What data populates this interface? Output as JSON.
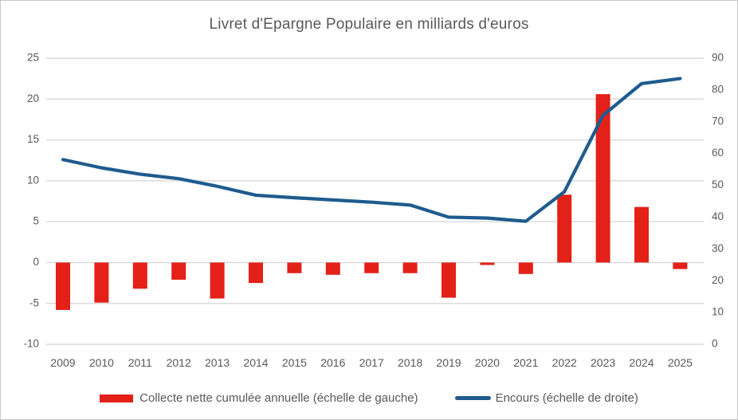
{
  "title": "Livret d'Epargne Populaire en milliards d'euros",
  "colors": {
    "bar_red": "#E32119",
    "line_blue": "#1F5B8E",
    "gridline": "#D9D9D9",
    "text_gray": "#595959"
  },
  "chart_data": {
    "type": "combo",
    "title": "Livret d'Epargne Populaire en milliards d'euros",
    "categories": [
      "2009",
      "2010",
      "2011",
      "2012",
      "2013",
      "2014",
      "2015",
      "2016",
      "2017",
      "2018",
      "2019",
      "2020",
      "2021",
      "2022",
      "2023",
      "2024",
      "2025"
    ],
    "series": [
      {
        "name": "Collecte nette cumulée annuelle (échelle de gauche)",
        "type": "bar",
        "axis": "left",
        "color": "#E32119",
        "values": [
          -5.8,
          -4.9,
          -3.2,
          -2.1,
          -4.4,
          -2.5,
          -1.3,
          -1.5,
          -1.3,
          -1.3,
          -4.3,
          -0.3,
          -1.4,
          8.3,
          20.6,
          6.8,
          -0.8
        ]
      },
      {
        "name": "Encours (échelle de droite)",
        "type": "line",
        "axis": "right",
        "color": "#1F5B8E",
        "values": [
          58.1,
          55.5,
          53.5,
          52.1,
          49.7,
          46.9,
          46.1,
          45.4,
          44.7,
          43.8,
          40.0,
          39.7,
          38.7,
          48.0,
          72.0,
          82.0,
          83.6
        ]
      }
    ],
    "left_axis": {
      "min": -10,
      "max": 25,
      "tick_labels": [
        "25",
        "20",
        "15",
        "10",
        "5",
        "0",
        "-5",
        "-10"
      ]
    },
    "right_axis": {
      "min": 0,
      "max": 90,
      "tick_labels": [
        "90",
        "80",
        "70",
        "60",
        "50",
        "40",
        "30",
        "20",
        "10",
        "0"
      ]
    },
    "grid": true,
    "legend_position": "bottom"
  },
  "legend": {
    "items": [
      {
        "label": "Collecte nette cumulée annuelle (échelle de gauche)",
        "swatch": "bar",
        "color": "#E32119"
      },
      {
        "label": "Encours (échelle de droite)",
        "swatch": "line",
        "color": "#1F5B8E"
      }
    ]
  }
}
